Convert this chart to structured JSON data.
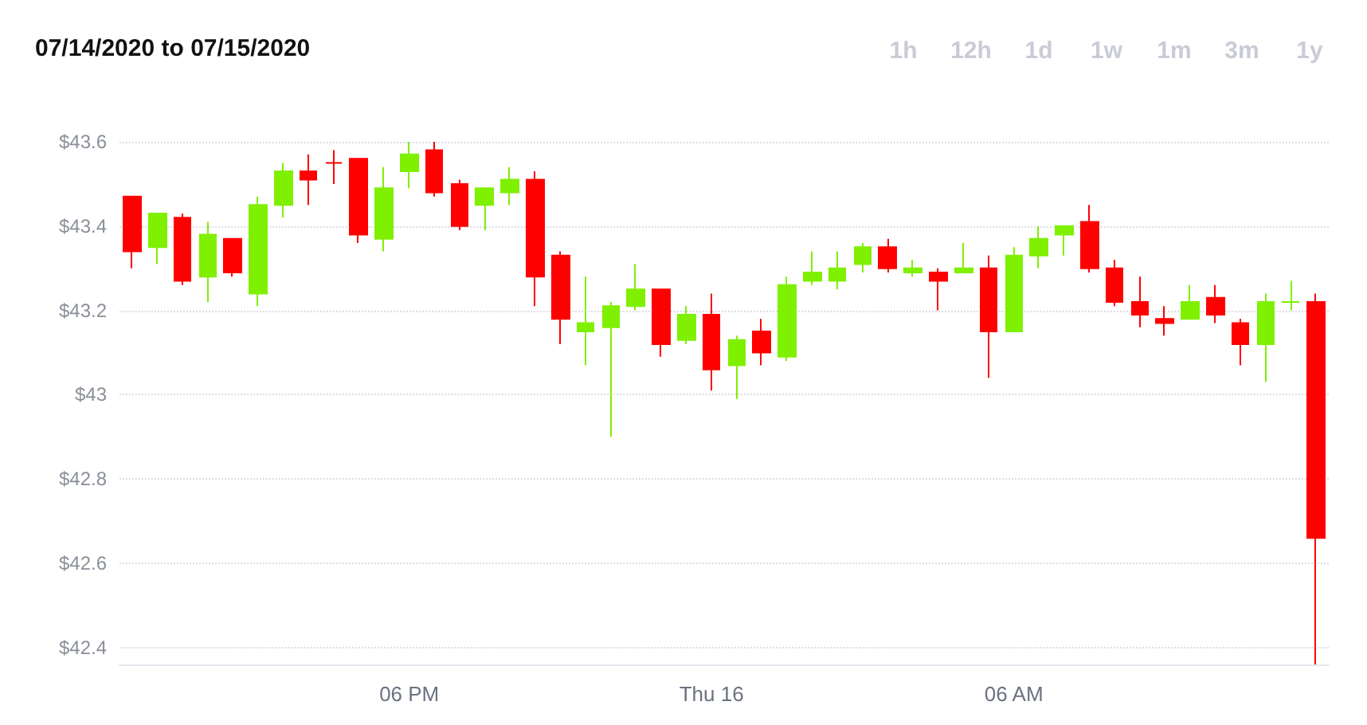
{
  "chart_data": {
    "type": "candlestick",
    "title": "07/14/2020 to 07/15/2020",
    "annotations": [
      "1h",
      "12h",
      "1d",
      "1w",
      "1m",
      "3m",
      "1y"
    ],
    "categories": [
      null,
      null,
      null,
      null,
      null,
      null,
      null,
      null,
      null,
      null,
      null,
      "06 PM",
      null,
      null,
      null,
      null,
      null,
      null,
      null,
      null,
      null,
      null,
      null,
      "Thu 16",
      null,
      null,
      null,
      null,
      null,
      null,
      null,
      null,
      null,
      null,
      null,
      "06 AM",
      null,
      null,
      null,
      null,
      null,
      null,
      null,
      null,
      null,
      null,
      null,
      null
    ],
    "ohlc": [
      [
        43.47,
        43.47,
        43.3,
        43.34
      ],
      [
        43.35,
        43.43,
        43.31,
        43.43
      ],
      [
        43.42,
        43.43,
        43.26,
        43.27
      ],
      [
        43.28,
        43.41,
        43.22,
        43.38
      ],
      [
        43.37,
        43.37,
        43.28,
        43.29
      ],
      [
        43.24,
        43.47,
        43.21,
        43.45
      ],
      [
        43.45,
        43.55,
        43.42,
        43.53
      ],
      [
        43.53,
        43.57,
        43.45,
        43.51
      ],
      [
        43.55,
        43.58,
        43.5,
        43.55
      ],
      [
        43.56,
        43.56,
        43.36,
        43.38
      ],
      [
        43.37,
        43.54,
        43.34,
        43.49
      ],
      [
        43.53,
        43.6,
        43.49,
        43.57
      ],
      [
        43.58,
        43.6,
        43.47,
        43.48
      ],
      [
        43.5,
        43.51,
        43.39,
        43.4
      ],
      [
        43.45,
        43.49,
        43.39,
        43.49
      ],
      [
        43.48,
        43.54,
        43.45,
        43.51
      ],
      [
        43.51,
        43.53,
        43.21,
        43.28
      ],
      [
        43.33,
        43.34,
        43.12,
        43.18
      ],
      [
        43.15,
        43.28,
        43.07,
        43.17
      ],
      [
        43.16,
        43.22,
        42.9,
        43.21
      ],
      [
        43.21,
        43.31,
        43.2,
        43.25
      ],
      [
        43.25,
        43.25,
        43.09,
        43.12
      ],
      [
        43.13,
        43.21,
        43.12,
        43.19
      ],
      [
        43.19,
        43.24,
        43.01,
        43.06
      ],
      [
        43.07,
        43.14,
        42.99,
        43.13
      ],
      [
        43.15,
        43.18,
        43.07,
        43.1
      ],
      [
        43.09,
        43.28,
        43.08,
        43.26
      ],
      [
        43.27,
        43.34,
        43.26,
        43.29
      ],
      [
        43.27,
        43.34,
        43.25,
        43.3
      ],
      [
        43.31,
        43.36,
        43.29,
        43.35
      ],
      [
        43.35,
        43.37,
        43.29,
        43.3
      ],
      [
        43.29,
        43.32,
        43.28,
        43.3
      ],
      [
        43.29,
        43.3,
        43.2,
        43.27
      ],
      [
        43.29,
        43.36,
        43.29,
        43.3
      ],
      [
        43.3,
        43.33,
        43.04,
        43.15
      ],
      [
        43.15,
        43.35,
        43.15,
        43.33
      ],
      [
        43.33,
        43.4,
        43.3,
        43.37
      ],
      [
        43.38,
        43.4,
        43.33,
        43.4
      ],
      [
        43.41,
        43.45,
        43.29,
        43.3
      ],
      [
        43.3,
        43.32,
        43.21,
        43.22
      ],
      [
        43.22,
        43.28,
        43.16,
        43.19
      ],
      [
        43.18,
        43.21,
        43.14,
        43.17
      ],
      [
        43.18,
        43.26,
        43.18,
        43.22
      ],
      [
        43.23,
        43.26,
        43.17,
        43.19
      ],
      [
        43.17,
        43.18,
        43.07,
        43.12
      ],
      [
        43.12,
        43.24,
        43.03,
        43.22
      ],
      [
        43.22,
        43.27,
        43.2,
        43.22
      ],
      [
        43.22,
        43.24,
        42.36,
        42.66
      ]
    ],
    "colors": [
      "#ff0000",
      "#7ff000",
      "#ff0000",
      "#7ff000",
      "#ff0000",
      "#7ff000",
      "#7ff000",
      "#ff0000",
      "#ff0000",
      "#ff0000",
      "#7ff000",
      "#7ff000",
      "#ff0000",
      "#ff0000",
      "#7ff000",
      "#7ff000",
      "#ff0000",
      "#ff0000",
      "#7ff000",
      "#7ff000",
      "#7ff000",
      "#ff0000",
      "#7ff000",
      "#ff0000",
      "#7ff000",
      "#ff0000",
      "#7ff000",
      "#7ff000",
      "#7ff000",
      "#7ff000",
      "#ff0000",
      "#7ff000",
      "#ff0000",
      "#7ff000",
      "#ff0000",
      "#7ff000",
      "#7ff000",
      "#7ff000",
      "#ff0000",
      "#ff0000",
      "#ff0000",
      "#ff0000",
      "#7ff000",
      "#ff0000",
      "#ff0000",
      "#7ff000",
      "#7ff000",
      "#ff0000"
    ],
    "yticks": [
      {
        "value": 42.4,
        "label": "$42.4"
      },
      {
        "value": 42.6,
        "label": "$42.6"
      },
      {
        "value": 42.8,
        "label": "$42.8"
      },
      {
        "value": 43,
        "label": "$43"
      },
      {
        "value": 43.2,
        "label": "$43.2"
      },
      {
        "value": 43.4,
        "label": "$43.4"
      },
      {
        "value": 43.6,
        "label": "$43.6"
      }
    ],
    "ylim": [
      42.36,
      43.6
    ],
    "grid": "y"
  }
}
